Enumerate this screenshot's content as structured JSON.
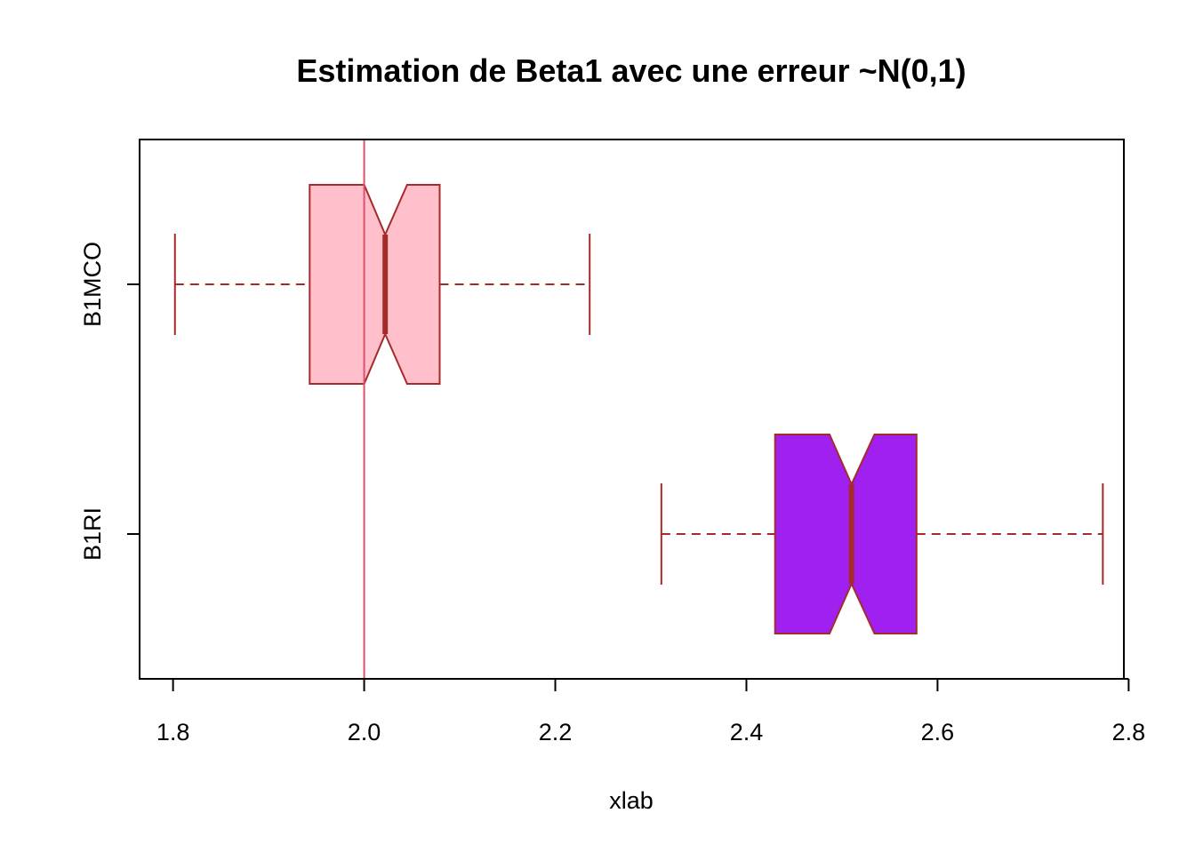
{
  "chart_data": {
    "type": "boxplot",
    "orientation": "horizontal",
    "notched": true,
    "title": "Estimation de Beta1 avec une erreur ~N(0,1)",
    "xlabel": "xlab",
    "ylabel": "",
    "xlim": [
      1.765,
      2.795
    ],
    "xticks": [
      "1.8",
      "2.0",
      "2.2",
      "2.4",
      "2.6",
      "2.8"
    ],
    "reference_line": {
      "x": 2.0,
      "color": "#e0506a"
    },
    "border_color": "#a52a2a",
    "grid": false,
    "series": [
      {
        "name": "B1MCO",
        "fill": "#ffc0cb",
        "whisker_low": 1.802,
        "q1": 1.943,
        "notch_low": 2.0,
        "median": 2.022,
        "notch_high": 2.045,
        "q3": 2.079,
        "whisker_high": 2.236
      },
      {
        "name": "B1RI",
        "fill": "#a020f0",
        "whisker_low": 2.311,
        "q1": 2.43,
        "notch_low": 2.487,
        "median": 2.51,
        "notch_high": 2.534,
        "q3": 2.578,
        "whisker_high": 2.773
      }
    ]
  }
}
